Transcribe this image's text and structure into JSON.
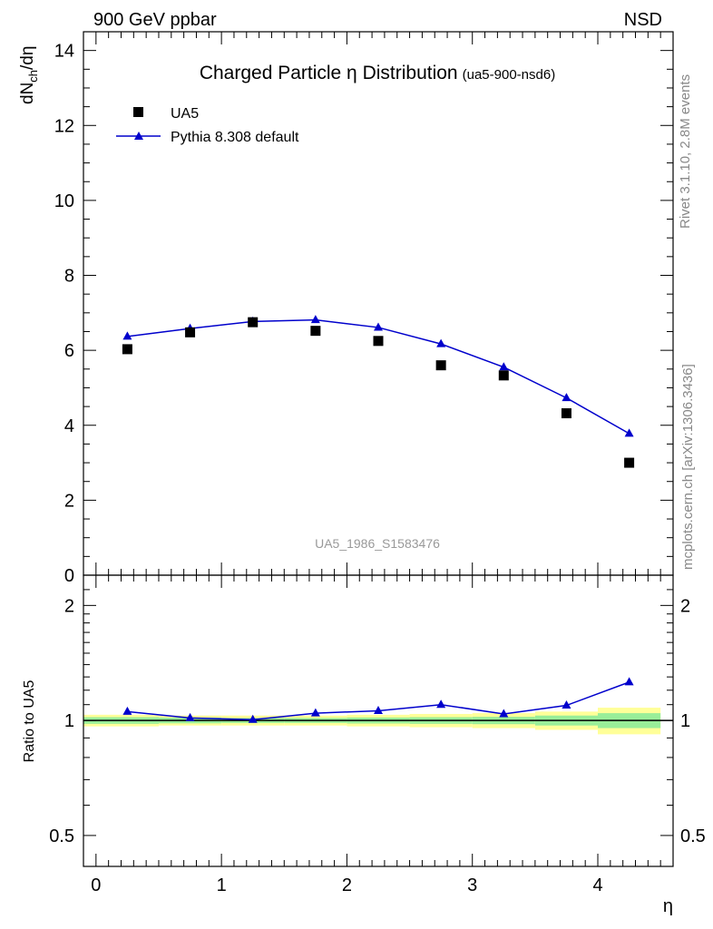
{
  "header": {
    "left": "900 GeV ppbar",
    "right": "NSD"
  },
  "side_text": {
    "top": "Rivet 3.1.10,  2.8M events",
    "bottom": "mcplots.cern.ch [arXiv:1306.3436]"
  },
  "watermark": "UA5_1986_S1583476",
  "chart_data": [
    {
      "type": "scatter",
      "title": "Charged Particle η Distribution",
      "title_tag": "(ua5-900-nsd6)",
      "ylabel_main": "dN",
      "ylabel_sub": "ch",
      "ylabel_tail": "/dη",
      "xlabel": "η",
      "xlim": [
        -0.1,
        4.6
      ],
      "ylim": [
        0,
        14.5
      ],
      "yticks": [
        "0",
        "2",
        "4",
        "6",
        "8",
        "10",
        "12",
        "14"
      ],
      "xticks": [
        "0",
        "1",
        "2",
        "3",
        "4"
      ],
      "legend_position": "top-left",
      "grid": false,
      "series": [
        {
          "name": "UA5",
          "marker": "square",
          "color": "#000000",
          "x": [
            0.25,
            0.75,
            1.25,
            1.75,
            2.25,
            2.75,
            3.25,
            3.75,
            4.25
          ],
          "y": [
            6.03,
            6.48,
            6.75,
            6.52,
            6.25,
            5.6,
            5.33,
            4.32,
            3.0
          ]
        },
        {
          "name": "Pythia 8.308 default",
          "marker": "triangle",
          "color": "#0000cc",
          "x": [
            0.25,
            0.75,
            1.25,
            1.75,
            2.25,
            2.75,
            3.25,
            3.75,
            4.25
          ],
          "y": [
            6.37,
            6.58,
            6.77,
            6.81,
            6.61,
            6.17,
            5.55,
            4.73,
            3.78
          ]
        }
      ]
    },
    {
      "type": "line",
      "ylabel": "Ratio to UA5",
      "scale": "log",
      "xlim": [
        -0.1,
        4.6
      ],
      "ylim": [
        0.415,
        2.4
      ],
      "yticks": [
        {
          "value": 0.5,
          "label": "0.5"
        },
        {
          "value": 1,
          "label": "1"
        },
        {
          "value": 2,
          "label": "2"
        }
      ],
      "reference_line": 1,
      "bands": {
        "edges": [
          -0.1,
          0.5,
          1.0,
          1.5,
          2.0,
          2.5,
          3.0,
          3.5,
          4.0,
          4.5
        ],
        "yellow_halfwidth": [
          0.035,
          0.03,
          0.03,
          0.03,
          0.035,
          0.04,
          0.045,
          0.055,
          0.08
        ],
        "green_halfwidth": [
          0.02,
          0.017,
          0.015,
          0.015,
          0.018,
          0.02,
          0.022,
          0.03,
          0.045
        ],
        "yellow": "#ffff99",
        "green": "#99ee99"
      },
      "series": [
        {
          "name": "Pythia 8.308 default",
          "color": "#0000cc",
          "x": [
            0.25,
            0.75,
            1.25,
            1.75,
            2.25,
            2.75,
            3.25,
            3.75,
            4.25
          ],
          "y": [
            1.055,
            1.015,
            1.005,
            1.045,
            1.06,
            1.1,
            1.04,
            1.095,
            1.26
          ]
        }
      ]
    }
  ]
}
